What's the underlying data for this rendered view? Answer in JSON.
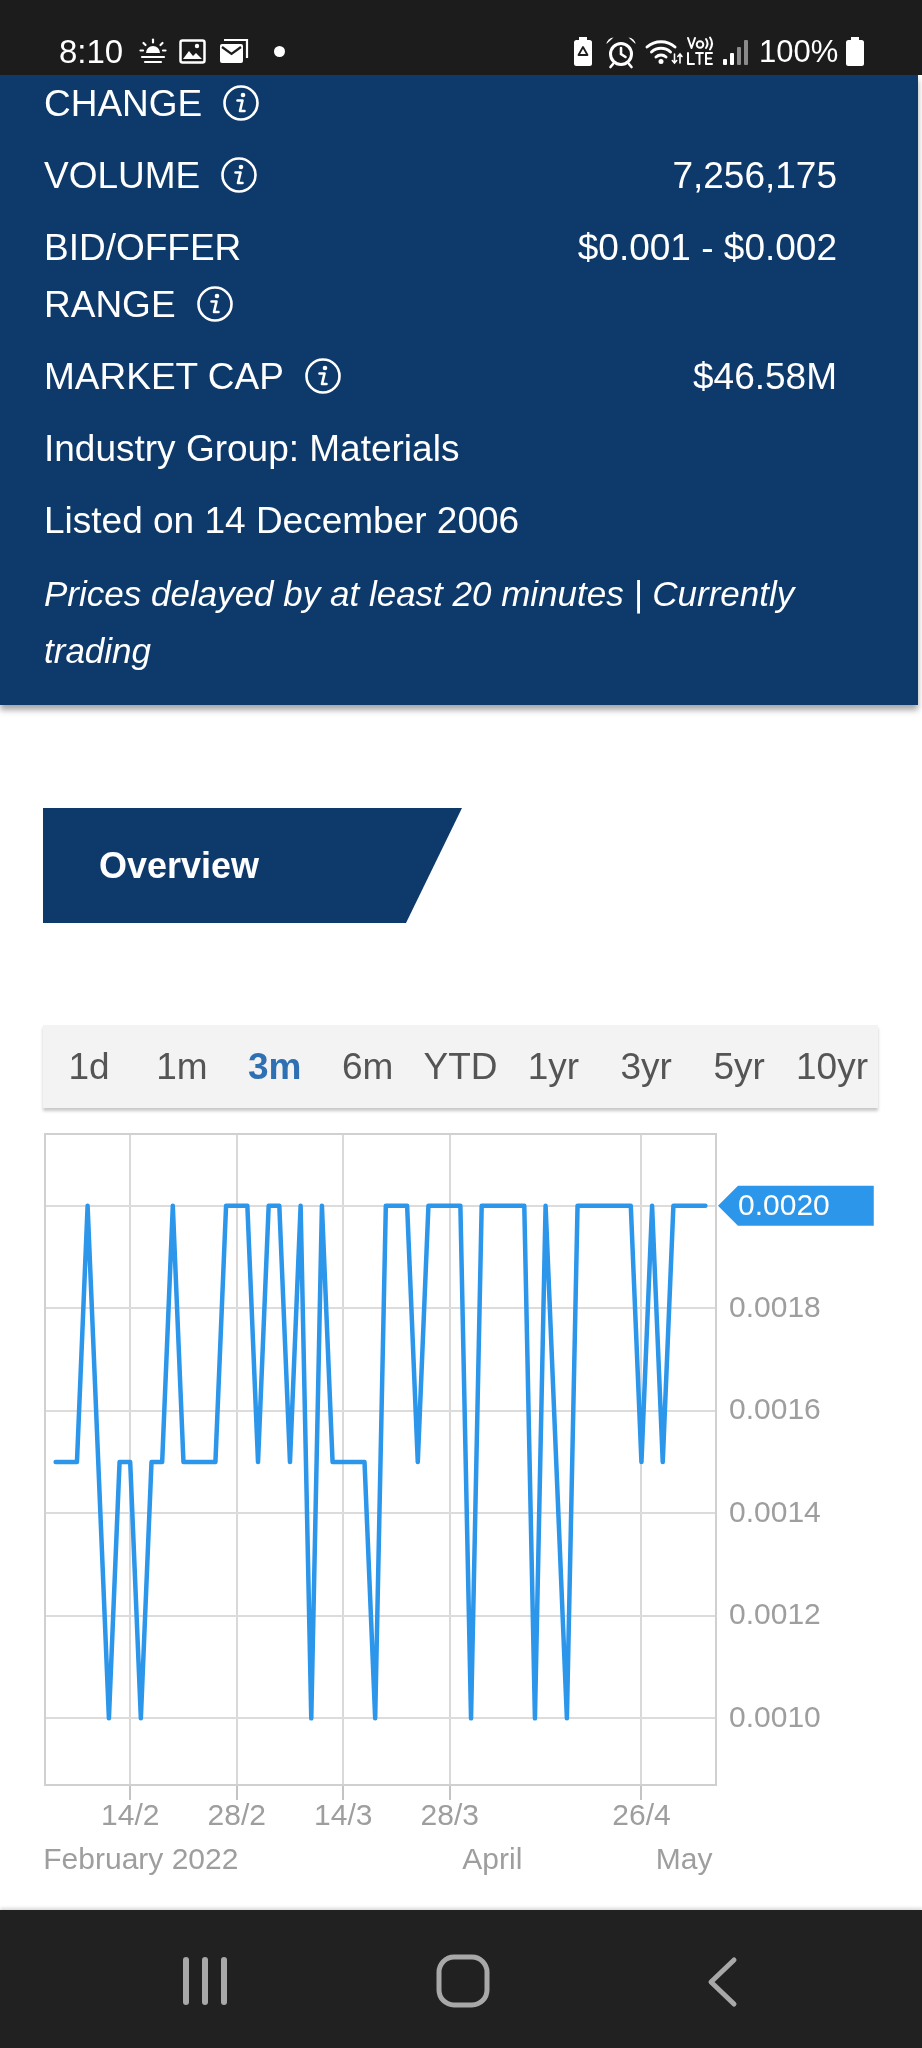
{
  "chart_data": [
    {
      "type": "other",
      "annotations": [
        "8:10",
        "100%"
      ]
    },
    {
      "type": "other",
      "categories": [
        "CHANGE",
        "VOLUME",
        "BID/OFFER RANGE",
        "MARKET CAP"
      ],
      "value_labels": [
        null,
        "7,256,175",
        "$0.001 - $0.002",
        "$46.58M"
      ],
      "annotations": [
        "Industry Group: Materials",
        "Listed on 14 December 2006",
        "Prices delayed by at least 20 minutes | Currently trading"
      ]
    },
    {
      "type": "other",
      "title": "Overview",
      "categories": [
        "1d",
        "1m",
        "3m",
        "6m",
        "YTD",
        "1yr",
        "3yr",
        "5yr",
        "10yr"
      ]
    },
    {
      "type": "line",
      "categories": [
        null,
        null,
        null,
        null,
        null,
        null,
        null,
        "14/2",
        "\nFebruary 2022",
        null,
        null,
        null,
        null,
        null,
        null,
        null,
        null,
        "28/2",
        null,
        null,
        null,
        null,
        null,
        null,
        null,
        null,
        null,
        "14/3",
        null,
        null,
        null,
        null,
        null,
        null,
        null,
        null,
        null,
        "28/3",
        null,
        null,
        null,
        "\nApril",
        null,
        null,
        null,
        null,
        null,
        null,
        null,
        null,
        null,
        null,
        null,
        null,
        null,
        "26/4",
        null,
        null,
        null,
        "\nMay",
        null,
        null
      ],
      "values": [
        0.0015,
        0.0015,
        0.0015,
        0.002,
        0.0015,
        0.001,
        0.0015,
        0.0015,
        0.001,
        0.0015,
        0.0015,
        0.002,
        0.0015,
        0.0015,
        0.0015,
        0.0015,
        0.002,
        0.002,
        0.002,
        0.0015,
        0.002,
        0.002,
        0.0015,
        0.002,
        0.001,
        0.002,
        0.0015,
        0.0015,
        0.0015,
        0.0015,
        0.001,
        0.002,
        0.002,
        0.002,
        0.0015,
        0.002,
        0.002,
        0.002,
        0.002,
        0.001,
        0.002,
        0.002,
        0.002,
        0.002,
        0.002,
        0.001,
        0.002,
        0.0015,
        0.001,
        0.002,
        0.002,
        0.002,
        0.002,
        0.002,
        0.002,
        0.0015,
        0.002,
        0.0015,
        0.002,
        0.002,
        0.002,
        0.002
      ],
      "color": "#2c96ea",
      "ylim": [
        0.00087,
        0.00214
      ],
      "yticks": [
        {
          "value": 0.001,
          "label": "0.0010"
        },
        0.0012,
        0.0014,
        0.0016,
        0.0018,
        {
          "value": 0.002,
          "label": null
        }
      ],
      "grid": true,
      "annotations": [
        "0.0020"
      ]
    }
  ]
}
